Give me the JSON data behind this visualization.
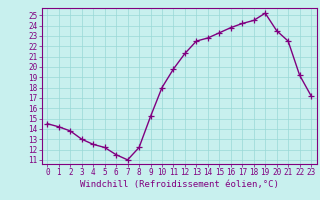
{
  "x": [
    0,
    1,
    2,
    3,
    4,
    5,
    6,
    7,
    8,
    9,
    10,
    11,
    12,
    13,
    14,
    15,
    16,
    17,
    18,
    19,
    20,
    21,
    22,
    23
  ],
  "y": [
    14.5,
    14.2,
    13.8,
    13.0,
    12.5,
    12.2,
    11.5,
    11.0,
    12.2,
    15.2,
    18.0,
    19.8,
    21.3,
    22.5,
    22.8,
    23.3,
    23.8,
    24.2,
    24.5,
    25.2,
    23.5,
    22.5,
    19.2,
    17.2
  ],
  "line_color": "#800080",
  "bg_color": "#c8f0ee",
  "grid_color": "#99d9d6",
  "axis_color": "#800080",
  "tick_color": "#800080",
  "xlabel": "Windchill (Refroidissement éolien,°C)",
  "ylim": [
    10.6,
    25.7
  ],
  "xlim": [
    -0.5,
    23.5
  ],
  "yticks": [
    11,
    12,
    13,
    14,
    15,
    16,
    17,
    18,
    19,
    20,
    21,
    22,
    23,
    24,
    25
  ],
  "xticks": [
    0,
    1,
    2,
    3,
    4,
    5,
    6,
    7,
    8,
    9,
    10,
    11,
    12,
    13,
    14,
    15,
    16,
    17,
    18,
    19,
    20,
    21,
    22,
    23
  ],
  "marker": "+",
  "marker_size": 4,
  "linewidth": 1.0,
  "xlabel_fontsize": 6.5,
  "tick_fontsize": 5.5
}
